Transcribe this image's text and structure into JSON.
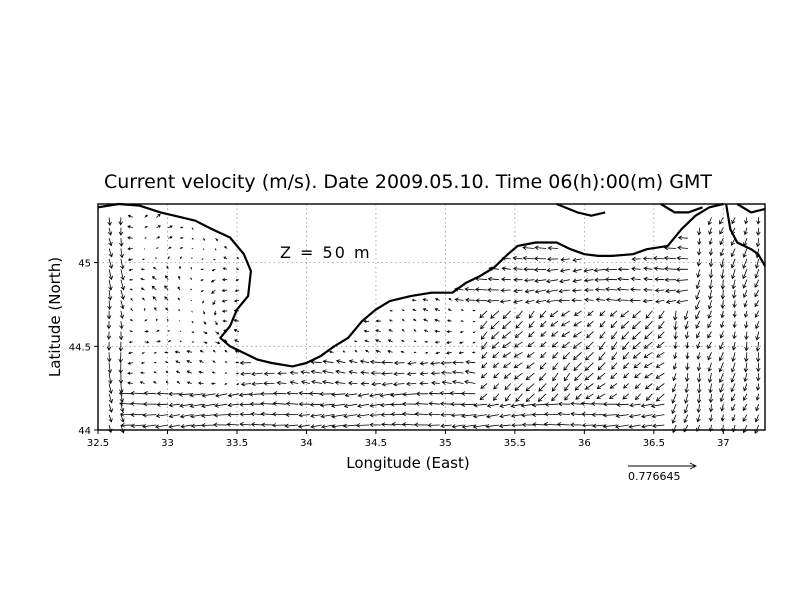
{
  "title": "Current velocity (m/s). Date 2009.05.10. Time 06(h):00(m) GMT",
  "depth_label": "Z = 50 m",
  "reference_vector_label": "0.776645",
  "chart_data": {
    "type": "vector-field",
    "title": "Current velocity (m/s). Date 2009.05.10. Time 06(h):00(m) GMT",
    "xlabel": "Longitude (East)",
    "ylabel": "Latitude (North)",
    "xlim": [
      32.5,
      37.3
    ],
    "ylim": [
      44.0,
      45.35
    ],
    "xticks": [
      "32.5",
      "33",
      "33.5",
      "34",
      "34.5",
      "35",
      "35.5",
      "36",
      "36.5",
      "37"
    ],
    "yticks": [
      "44",
      "44.5",
      "45"
    ],
    "grid": true,
    "annotation": "Z = 50 m",
    "reference_vector": {
      "magnitude": 0.776645,
      "units": "m/s"
    },
    "coastlines": {
      "crimea": [
        [
          32.5,
          45.33
        ],
        [
          32.65,
          45.35
        ],
        [
          32.8,
          45.34
        ],
        [
          32.95,
          45.3
        ],
        [
          33.05,
          45.28
        ],
        [
          33.2,
          45.25
        ],
        [
          33.32,
          45.2
        ],
        [
          33.45,
          45.15
        ],
        [
          33.55,
          45.05
        ],
        [
          33.6,
          44.95
        ],
        [
          33.58,
          44.8
        ],
        [
          33.5,
          44.72
        ],
        [
          33.45,
          44.62
        ],
        [
          33.38,
          44.55
        ],
        [
          33.45,
          44.5
        ],
        [
          33.55,
          44.46
        ],
        [
          33.65,
          44.42
        ],
        [
          33.75,
          44.4
        ],
        [
          33.9,
          44.38
        ],
        [
          34.0,
          44.4
        ],
        [
          34.1,
          44.44
        ],
        [
          34.2,
          44.5
        ],
        [
          34.3,
          44.55
        ],
        [
          34.4,
          44.65
        ],
        [
          34.5,
          44.72
        ],
        [
          34.6,
          44.77
        ],
        [
          34.75,
          44.8
        ],
        [
          34.9,
          44.82
        ],
        [
          35.05,
          44.82
        ],
        [
          35.15,
          44.88
        ],
        [
          35.25,
          44.92
        ],
        [
          35.35,
          44.97
        ],
        [
          35.45,
          45.05
        ],
        [
          35.52,
          45.1
        ],
        [
          35.65,
          45.12
        ],
        [
          35.8,
          45.12
        ],
        [
          35.9,
          45.08
        ],
        [
          36.0,
          45.05
        ],
        [
          36.1,
          45.04
        ],
        [
          36.2,
          45.04
        ],
        [
          36.35,
          45.05
        ],
        [
          36.45,
          45.08
        ],
        [
          36.6,
          45.1
        ],
        [
          36.7,
          45.2
        ],
        [
          36.8,
          45.28
        ],
        [
          36.9,
          45.33
        ],
        [
          37.0,
          45.35
        ]
      ],
      "taman": [
        [
          37.02,
          45.35
        ],
        [
          37.05,
          45.2
        ],
        [
          37.1,
          45.12
        ],
        [
          37.2,
          45.08
        ],
        [
          37.25,
          45.05
        ],
        [
          37.3,
          44.98
        ]
      ],
      "azov_north_1": [
        [
          35.8,
          45.35
        ],
        [
          35.95,
          45.3
        ],
        [
          36.05,
          45.28
        ],
        [
          36.15,
          45.3
        ]
      ],
      "azov_north_2": [
        [
          36.55,
          45.35
        ],
        [
          36.65,
          45.3
        ],
        [
          36.75,
          45.3
        ],
        [
          36.85,
          45.33
        ]
      ],
      "azov_north_3": [
        [
          37.1,
          45.35
        ],
        [
          37.2,
          45.3
        ],
        [
          37.3,
          45.32
        ]
      ]
    }
  }
}
